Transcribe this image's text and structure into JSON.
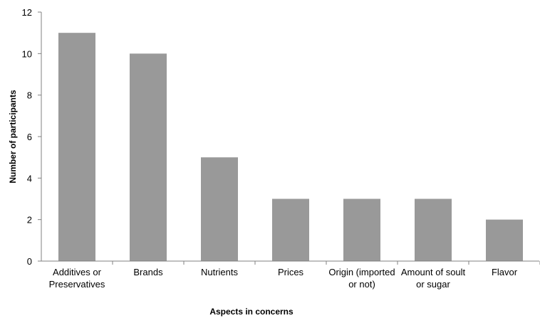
{
  "chart_data": {
    "type": "bar",
    "title": "",
    "xlabel": "Aspects in concerns",
    "ylabel": "Number of participants",
    "categories": [
      [
        "Additives or",
        "Preservatives"
      ],
      [
        "Brands"
      ],
      [
        "Nutrients"
      ],
      [
        "Prices"
      ],
      [
        "Origin (imported",
        "or not)"
      ],
      [
        "Amount of soult",
        "or sugar"
      ],
      [
        "Flavor"
      ]
    ],
    "values": [
      11,
      10,
      5,
      3,
      3,
      3,
      2
    ],
    "ylim": [
      0,
      12
    ],
    "yticks": [
      0,
      2,
      4,
      6,
      8,
      10,
      12
    ],
    "grid": false,
    "legend": "none",
    "colors": {
      "bar": "#999999",
      "axis": "#808080",
      "text": "#000000"
    }
  }
}
